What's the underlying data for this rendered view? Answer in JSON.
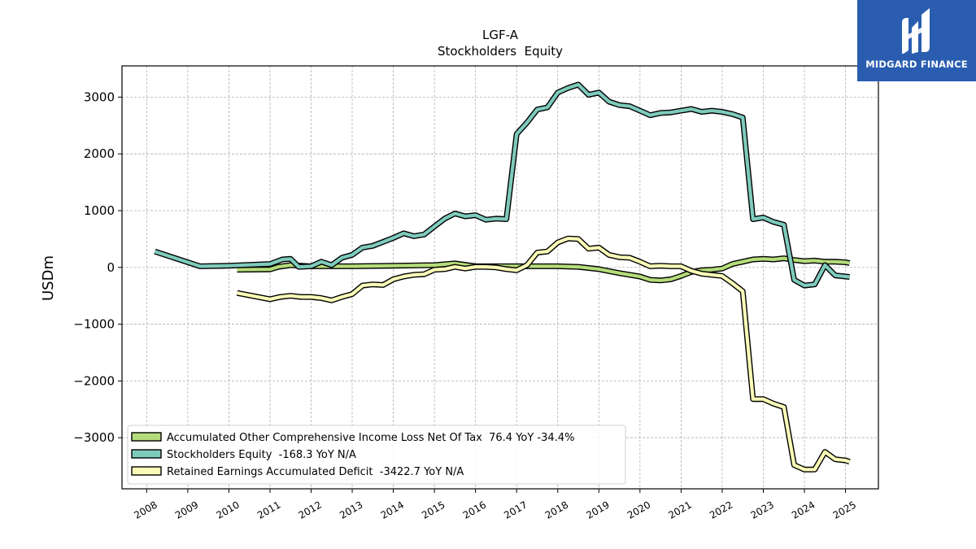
{
  "brand": {
    "name": "MIDGARD FINANCE",
    "bg_color": "#2a5db0"
  },
  "chart_data": {
    "type": "line",
    "title": "LGF-A",
    "subtitle": "Stockholders  Equity",
    "ylabel": "USDm",
    "xlabel": "",
    "ylim": [
      -3900,
      3550
    ],
    "xlim": [
      2007.4,
      2025.8
    ],
    "yticks": [
      -3000,
      -2000,
      -1000,
      0,
      1000,
      2000,
      3000
    ],
    "ytick_labels": [
      "−3000",
      "−2000",
      "−1000",
      "0",
      "1000",
      "2000",
      "3000"
    ],
    "xticks": [
      2008,
      2009,
      2010,
      2011,
      2012,
      2013,
      2014,
      2015,
      2016,
      2017,
      2018,
      2019,
      2020,
      2021,
      2022,
      2023,
      2024,
      2025
    ],
    "xtick_labels": [
      "2008",
      "2009",
      "2010",
      "2011",
      "2012",
      "2013",
      "2014",
      "2015",
      "2016",
      "2017",
      "2018",
      "2019",
      "2020",
      "2021",
      "2022",
      "2023",
      "2024",
      "2025"
    ],
    "grid": true,
    "legend_position": "lower-left",
    "series": [
      {
        "name": "Accumulated Other Comprehensive Income Loss Net Of Tax  76.4 YoY -34.4%",
        "color": "#b5dc7a",
        "x": [
          2010.2,
          2011.0,
          2011.2,
          2011.5,
          2012.0,
          2012.5,
          2013.0,
          2014.0,
          2015.0,
          2015.5,
          2016.0,
          2016.5,
          2017.0,
          2018.0,
          2018.5,
          2019.0,
          2019.5,
          2020.0,
          2020.25,
          2020.5,
          2020.75,
          2021.0,
          2021.25,
          2021.5,
          2021.75,
          2022.0,
          2022.25,
          2022.5,
          2022.75,
          2023.0,
          2023.25,
          2023.5,
          2023.75,
          2024.0,
          2024.25,
          2024.5,
          2024.75,
          2025.0,
          2025.1
        ],
        "y": [
          -40,
          -35,
          10,
          40,
          20,
          20,
          20,
          30,
          40,
          70,
          20,
          20,
          20,
          20,
          10,
          -30,
          -100,
          -160,
          -220,
          -230,
          -210,
          -150,
          -80,
          -50,
          -40,
          -20,
          60,
          100,
          140,
          150,
          140,
          160,
          130,
          110,
          120,
          100,
          100,
          90,
          76
        ]
      },
      {
        "name": "Stockholders Equity  -168.3 YoY N/A",
        "color": "#7ecbbd",
        "x": [
          2008.2,
          2009.3,
          2010.0,
          2011.0,
          2011.3,
          2011.5,
          2011.7,
          2012.0,
          2012.25,
          2012.5,
          2012.75,
          2013.0,
          2013.25,
          2013.5,
          2013.75,
          2014.0,
          2014.25,
          2014.5,
          2014.75,
          2015.0,
          2015.25,
          2015.5,
          2015.75,
          2016.0,
          2016.25,
          2016.5,
          2016.75,
          2017.0,
          2017.25,
          2017.5,
          2017.75,
          2018.0,
          2018.25,
          2018.5,
          2018.75,
          2019.0,
          2019.25,
          2019.5,
          2019.75,
          2020.0,
          2020.25,
          2020.5,
          2020.75,
          2021.0,
          2021.25,
          2021.5,
          2021.75,
          2022.0,
          2022.25,
          2022.5,
          2022.75,
          2023.0,
          2023.25,
          2023.5,
          2023.75,
          2024.0,
          2024.25,
          2024.5,
          2024.75,
          2025.0,
          2025.1
        ],
        "y": [
          280,
          20,
          30,
          60,
          140,
          150,
          10,
          20,
          100,
          40,
          170,
          220,
          350,
          380,
          450,
          520,
          600,
          550,
          580,
          720,
          860,
          950,
          900,
          920,
          840,
          860,
          850,
          2350,
          2550,
          2780,
          2820,
          3080,
          3160,
          3220,
          3040,
          3080,
          2920,
          2860,
          2840,
          2760,
          2680,
          2720,
          2730,
          2760,
          2790,
          2740,
          2760,
          2740,
          2700,
          2640,
          850,
          880,
          800,
          750,
          -220,
          -320,
          -300,
          40,
          -140,
          -160,
          -168.3
        ]
      },
      {
        "name": "Retained Earnings Accumulated Deficit  -3422.7 YoY N/A",
        "color": "#fbfbb8",
        "x": [
          2010.2,
          2011.0,
          2011.25,
          2011.5,
          2011.75,
          2012.0,
          2012.25,
          2012.5,
          2012.75,
          2013.0,
          2013.25,
          2013.5,
          2013.75,
          2014.0,
          2014.25,
          2014.5,
          2014.75,
          2015.0,
          2015.25,
          2015.5,
          2015.75,
          2016.0,
          2016.25,
          2016.5,
          2016.75,
          2017.0,
          2017.25,
          2017.5,
          2017.75,
          2018.0,
          2018.25,
          2018.5,
          2018.75,
          2019.0,
          2019.25,
          2019.5,
          2019.75,
          2020.0,
          2020.25,
          2020.5,
          2020.75,
          2021.0,
          2021.25,
          2021.5,
          2021.75,
          2022.0,
          2022.25,
          2022.5,
          2022.75,
          2023.0,
          2023.25,
          2023.5,
          2023.75,
          2024.0,
          2024.25,
          2024.5,
          2024.75,
          2025.0,
          2025.1
        ],
        "y": [
          -450,
          -560,
          -520,
          -500,
          -520,
          -520,
          -540,
          -580,
          -520,
          -470,
          -320,
          -300,
          -310,
          -210,
          -160,
          -130,
          -120,
          -40,
          -30,
          10,
          -20,
          10,
          10,
          0,
          -30,
          -50,
          40,
          260,
          280,
          440,
          510,
          500,
          330,
          350,
          220,
          180,
          170,
          100,
          20,
          30,
          20,
          20,
          -60,
          -110,
          -130,
          -150,
          -280,
          -420,
          -2320,
          -2320,
          -2400,
          -2460,
          -3480,
          -3560,
          -3560,
          -3250,
          -3380,
          -3400,
          -3422.7
        ]
      }
    ]
  }
}
